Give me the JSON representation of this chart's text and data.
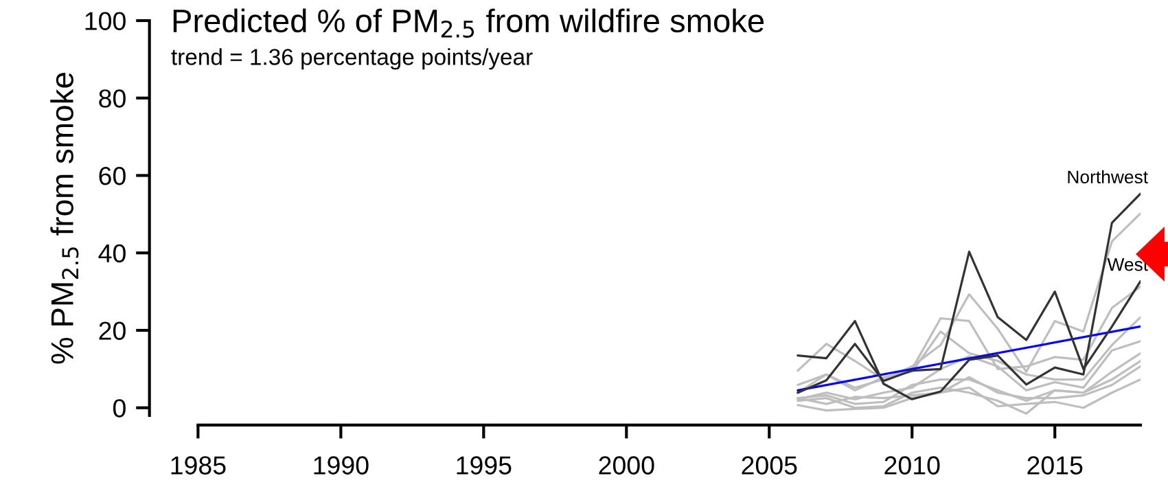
{
  "chart_data": {
    "type": "line",
    "title": "Predicted % of PM$_{2.5}$ from wildfire smoke",
    "subtitle": "trend = 1.36 percentage points/year",
    "ylabel": "% PM$_{2.5}$ from smoke",
    "x": [
      2006,
      2007,
      2008,
      2009,
      2010,
      2011,
      2012,
      2013,
      2014,
      2015,
      2016,
      2017,
      2018
    ],
    "xlim": [
      1983.5,
      2018
    ],
    "xticks": [
      1985,
      1990,
      1995,
      2000,
      2005,
      2010,
      2015
    ],
    "ylim": [
      -2,
      100
    ],
    "yticks": [
      0,
      20,
      40,
      60,
      80,
      100
    ],
    "series": [
      {
        "color": "#bebebe",
        "values": [
          5.9,
          8.6,
          5.2,
          7.3,
          10.7,
          16.2,
          29.3,
          20.4,
          9.3,
          22.4,
          19.7,
          43.0,
          50.2
        ]
      },
      {
        "color": "#bebebe",
        "values": [
          9.6,
          16.5,
          12.1,
          7.3,
          10.0,
          23.1,
          22.4,
          10.0,
          10.7,
          13.1,
          12.4,
          25.8,
          31.3
        ]
      },
      {
        "color": "#bebebe",
        "values": [
          3.9,
          8.6,
          4.5,
          7.9,
          9.3,
          19.7,
          14.1,
          12.1,
          8.6,
          7.3,
          7.3,
          16.2,
          23.4
        ]
      },
      {
        "color": "#bebebe",
        "values": [
          2.2,
          3.9,
          2.2,
          3.9,
          5.2,
          10.0,
          13.3,
          10.7,
          4.5,
          6.6,
          5.2,
          14.8,
          17.2
        ]
      },
      {
        "color": "#bebebe",
        "values": [
          2.5,
          3.2,
          1.0,
          1.5,
          5.9,
          7.3,
          7.3,
          4.5,
          1.8,
          4.5,
          3.9,
          9.3,
          14.1
        ]
      },
      {
        "color": "#bebebe",
        "values": [
          1.8,
          2.5,
          0.0,
          0.4,
          3.9,
          5.2,
          3.9,
          1.8,
          -1.5,
          4.5,
          3.9,
          7.3,
          12.1
        ]
      },
      {
        "color": "#bebebe",
        "values": [
          0.7,
          -0.7,
          -0.3,
          0.0,
          2.5,
          3.9,
          5.2,
          0.4,
          1.0,
          1.5,
          0.0,
          3.9,
          7.3
        ]
      },
      {
        "color": "#bebebe",
        "values": [
          2.5,
          1.0,
          2.8,
          2.5,
          3.2,
          3.9,
          7.9,
          3.9,
          2.5,
          2.5,
          3.2,
          5.9,
          10.7
        ]
      },
      {
        "name": "Northwest",
        "color": "#333333",
        "values": [
          13.5,
          12.8,
          22.4,
          6.2,
          2.2,
          4.2,
          12.4,
          13.5,
          6.0,
          10.4,
          8.6,
          47.8,
          55.3
        ]
      },
      {
        "name": "West",
        "color": "#333333",
        "values": [
          3.9,
          7.1,
          16.5,
          6.9,
          9.6,
          10.0,
          40.3,
          23.4,
          17.5,
          30.0,
          10.0,
          21.0,
          32.7
        ]
      },
      {
        "type": "line",
        "color": "#0000ff",
        "x": [
          2006,
          2018
        ],
        "values": [
          4.5,
          21.0
        ]
      }
    ]
  }
}
